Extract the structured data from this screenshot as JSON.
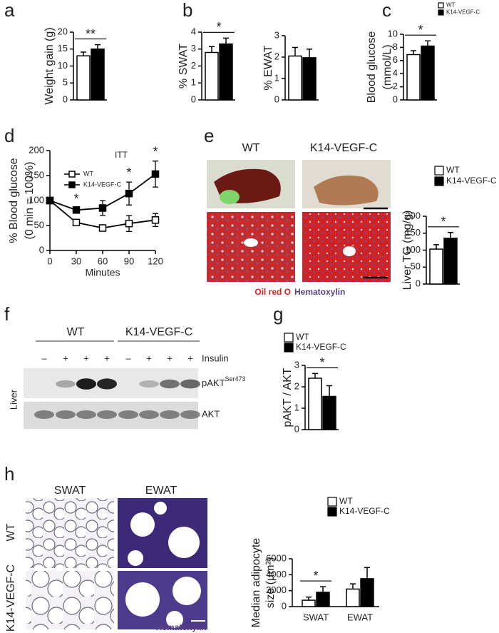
{
  "panel_labels": [
    "a",
    "b",
    "c",
    "d",
    "e",
    "f",
    "g",
    "h"
  ],
  "chart_data": [
    {
      "type": "bar",
      "y_label": [
        "Weight gain (g)"
      ],
      "categories": [
        null,
        null
      ],
      "values": [
        13,
        15
      ],
      "errors": [
        1.1,
        1.3
      ],
      "colors": [
        "#ffffff",
        "#000000"
      ],
      "ylim": [
        0,
        20
      ],
      "yticks": [
        0,
        5,
        10,
        15,
        20
      ],
      "significance": "**"
    },
    {
      "type": "bar",
      "y_label": [
        "% SWAT"
      ],
      "categories": [
        null,
        null
      ],
      "values": [
        2.8,
        3.3
      ],
      "errors": [
        0.35,
        0.35
      ],
      "colors": [
        "#ffffff",
        "#000000"
      ],
      "ylim": [
        0,
        4
      ],
      "yticks": [
        0,
        1,
        2,
        3,
        4
      ],
      "significance": "*"
    },
    {
      "type": "bar",
      "y_label": [
        "% EWAT"
      ],
      "categories": [
        null,
        null
      ],
      "values": [
        2.05,
        1.97
      ],
      "errors": [
        0.4,
        0.4
      ],
      "colors": [
        "#ffffff",
        "#000000"
      ],
      "ylim": [
        0,
        3
      ],
      "yticks": [
        0,
        1,
        2,
        3
      ]
    },
    {
      "type": "bar",
      "y_label": [
        "Blood glucose",
        "(mmol/L)"
      ],
      "categories": [
        null
      ],
      "series": [
        {
          "name": "WT",
          "color": "#ffffff",
          "values": [
            6.9
          ],
          "errors": [
            0.6
          ]
        },
        {
          "name": "K14-VEGF-C",
          "color": "#000000",
          "values": [
            8.2
          ],
          "errors": [
            0.8
          ]
        }
      ],
      "ylim": [
        0,
        10
      ],
      "yticks": [
        0,
        2,
        4,
        6,
        8,
        10
      ],
      "significance": "*"
    },
    {
      "type": "line",
      "title": "ITT",
      "y_label": [
        "% Blood glucose",
        "(0 min = 100%)"
      ],
      "x_label": "Minutes",
      "x": [
        0,
        30,
        60,
        90,
        120
      ],
      "series": [
        {
          "name": "WT",
          "color": "#ffffff",
          "values": [
            100,
            56,
            45,
            54,
            61
          ],
          "errors": [
            0,
            6,
            6,
            16,
            13
          ]
        },
        {
          "name": "K14-VEGF-C",
          "color": "#000000",
          "values": [
            100,
            81,
            85,
            114,
            153
          ],
          "errors": [
            0,
            4,
            15,
            23,
            26
          ]
        }
      ],
      "xlim": [
        0,
        120
      ],
      "xticks": [
        0,
        30,
        60,
        90,
        120
      ],
      "ylim": [
        0,
        200
      ],
      "yticks": [
        0,
        50,
        100,
        150,
        200
      ],
      "significance": [
        {
          "x": 30,
          "label": "*"
        },
        {
          "x": 90,
          "label": "*"
        },
        {
          "x": 120,
          "label": "*"
        }
      ]
    },
    {
      "type": "bar",
      "y_label": [
        "Liver TG (mg/g)"
      ],
      "categories": [
        null
      ],
      "series": [
        {
          "name": "WT",
          "color": "#ffffff",
          "values": [
            103
          ],
          "errors": [
            13
          ]
        },
        {
          "name": "K14-VEGF-C",
          "color": "#000000",
          "values": [
            135
          ],
          "errors": [
            17
          ]
        }
      ],
      "ylim": [
        0,
        200
      ],
      "yticks": [
        0,
        50,
        100,
        150,
        200
      ],
      "significance": "*"
    },
    {
      "type": "bar",
      "y_label": [
        "pAKT / AKT"
      ],
      "categories": [
        null
      ],
      "series": [
        {
          "name": "WT",
          "color": "#ffffff",
          "values": [
            2.4
          ],
          "errors": [
            0.22
          ]
        },
        {
          "name": "K14-VEGF-C",
          "color": "#000000",
          "values": [
            1.55
          ],
          "errors": [
            0.5
          ]
        }
      ],
      "ylim": [
        0,
        3
      ],
      "yticks": [
        0,
        1,
        2,
        3
      ],
      "significance": "*"
    },
    {
      "type": "bar",
      "y_label": [
        "Median adipocyte",
        "size (µm²)"
      ],
      "categories": [
        "SWAT",
        "EWAT"
      ],
      "series": [
        {
          "name": "WT",
          "color": "#ffffff",
          "values": [
            800,
            2200
          ],
          "errors": [
            400,
            650
          ]
        },
        {
          "name": "K14-VEGF-C",
          "color": "#000000",
          "values": [
            1800,
            3500
          ],
          "errors": [
            700,
            1400
          ]
        }
      ],
      "ylim": [
        0,
        6000
      ],
      "yticks": [
        0,
        2000,
        4000,
        6000
      ],
      "significance": "*"
    }
  ],
  "panel_e": {
    "columns": [
      "WT",
      "K14-VEGF-C"
    ],
    "stain_1": "Oil red O",
    "stain_2": "Hematoxylin"
  },
  "panel_f": {
    "groups": [
      "WT",
      "K14-VEGF-C"
    ],
    "insulin": [
      "–",
      "+",
      "+",
      "+",
      "–",
      "+",
      "+",
      "+"
    ],
    "treatment": "Insulin",
    "tissue": "Liver",
    "band_1": "pAKT",
    "band_1_site": "Ser473",
    "band_2": "AKT"
  },
  "panel_h": {
    "columns": [
      "SWAT",
      "EWAT"
    ],
    "rows": [
      "WT",
      "K14-VEGF-C"
    ],
    "stain": "Hematoxylin"
  }
}
